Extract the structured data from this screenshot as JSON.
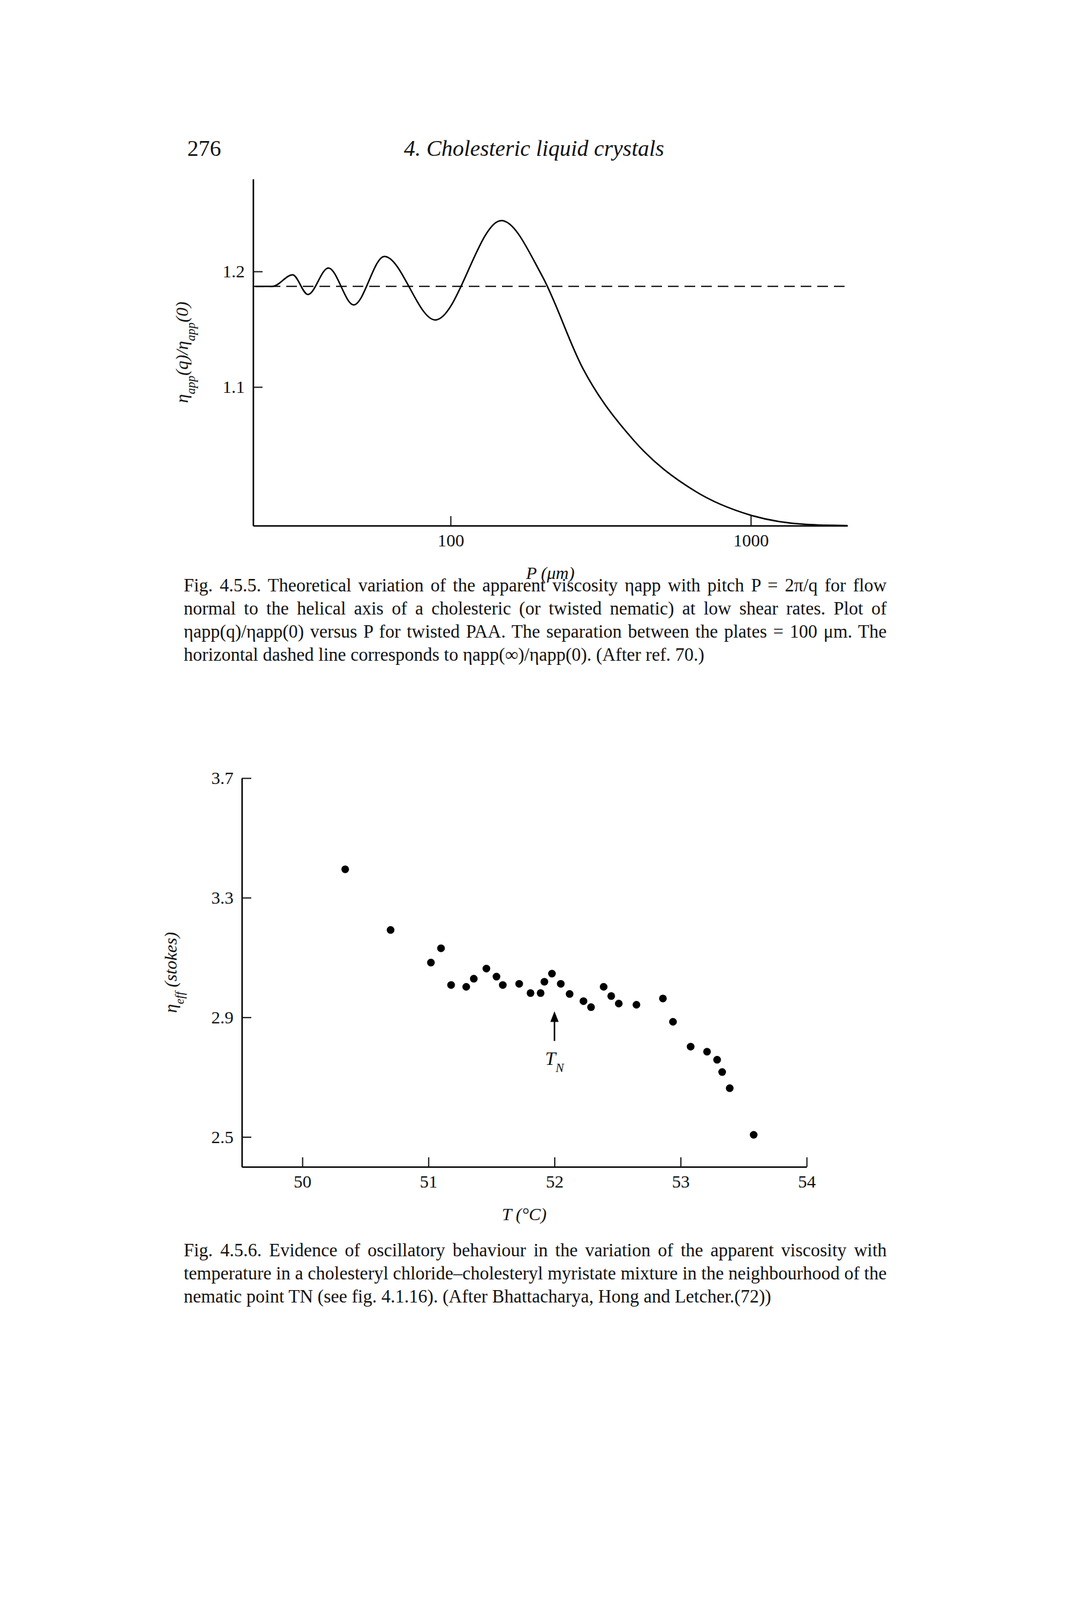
{
  "page_number": "276",
  "running_head": "4. Cholesteric liquid crystals",
  "captions": [
    "Fig. 4.5.5. Theoretical variation of the apparent viscosity ηapp with pitch P = 2π/q for flow normal to the helical axis of a cholesteric (or twisted nematic) at low shear rates. Plot of ηapp(q)/ηapp(0) versus P for twisted PAA. The separation between the plates = 100 μm. The horizontal dashed line corresponds to ηapp(∞)/ηapp(0). (After ref. 70.)",
    "Fig. 4.5.6. Evidence of oscillatory behaviour in the variation of the apparent viscosity with temperature in a cholesteryl chloride–cholesteryl myristate mixture in the neighbourhood of the nematic point TN (see fig. 4.1.16). (After Bhattacharya, Hong and Letcher.(72))"
  ],
  "chart_data": [
    {
      "type": "line",
      "log": "x",
      "x_label": "P (μm)",
      "y_label": "ηapp(q)/ηapp(0)",
      "xlim": [
        22,
        2100
      ],
      "xticks": [
        100,
        1000
      ],
      "ylim": [
        0.98,
        1.28
      ],
      "yticks": [
        1.1,
        1.2
      ],
      "series": [
        {
          "type": "line",
          "color": "#000000",
          "line_style": "solid",
          "x": [
            22.4,
            25.5,
            29.8,
            33.5,
            39.2,
            47.6,
            60.2,
            89,
            147.7,
            202,
            276,
            407,
            651,
            1000,
            1535,
            2100
          ],
          "values": [
            1.187,
            1.187,
            1.197,
            1.18,
            1.203,
            1.171,
            1.213,
            1.158,
            1.244,
            1.196,
            1.116,
            1.054,
            1.01,
            0.989,
            0.981,
            0.98
          ]
        },
        {
          "type": "line",
          "color": "#000000",
          "line_style": "dashed",
          "x": [
            22,
            2100
          ],
          "values": [
            1.187,
            1.187
          ]
        }
      ]
    },
    {
      "type": "scatter",
      "x_label": "T (°C)",
      "y_label": "ηeff (stokes)",
      "xlim": [
        49.52,
        54
      ],
      "xticks": [
        50,
        51,
        52,
        53,
        54
      ],
      "ylim": [
        2.4,
        3.7
      ],
      "yticks": [
        2.5,
        2.9,
        3.3,
        3.7
      ],
      "x": [
        50.34,
        50.7,
        51.02,
        51.1,
        51.18,
        51.3,
        51.36,
        51.46,
        51.54,
        51.59,
        51.72,
        51.81,
        51.89,
        51.92,
        51.98,
        52.05,
        52.12,
        52.23,
        52.29,
        52.39,
        52.45,
        52.51,
        52.65,
        52.86,
        52.94,
        53.08,
        53.21,
        53.29,
        53.33,
        53.39,
        53.58
      ],
      "series": [
        {
          "color": "#000000",
          "marker": "circle",
          "values": [
            3.395,
            3.192,
            3.083,
            3.131,
            3.008,
            3.002,
            3.029,
            3.063,
            3.036,
            3.008,
            3.012,
            2.981,
            2.981,
            3.019,
            3.046,
            3.012,
            2.978,
            2.954,
            2.934,
            3.002,
            2.971,
            2.946,
            2.942,
            2.963,
            2.885,
            2.802,
            2.785,
            2.758,
            2.717,
            2.663,
            2.507
          ]
        }
      ],
      "annotations": [
        {
          "text": "TN",
          "x": 52.0,
          "y": 2.92
        }
      ]
    }
  ]
}
